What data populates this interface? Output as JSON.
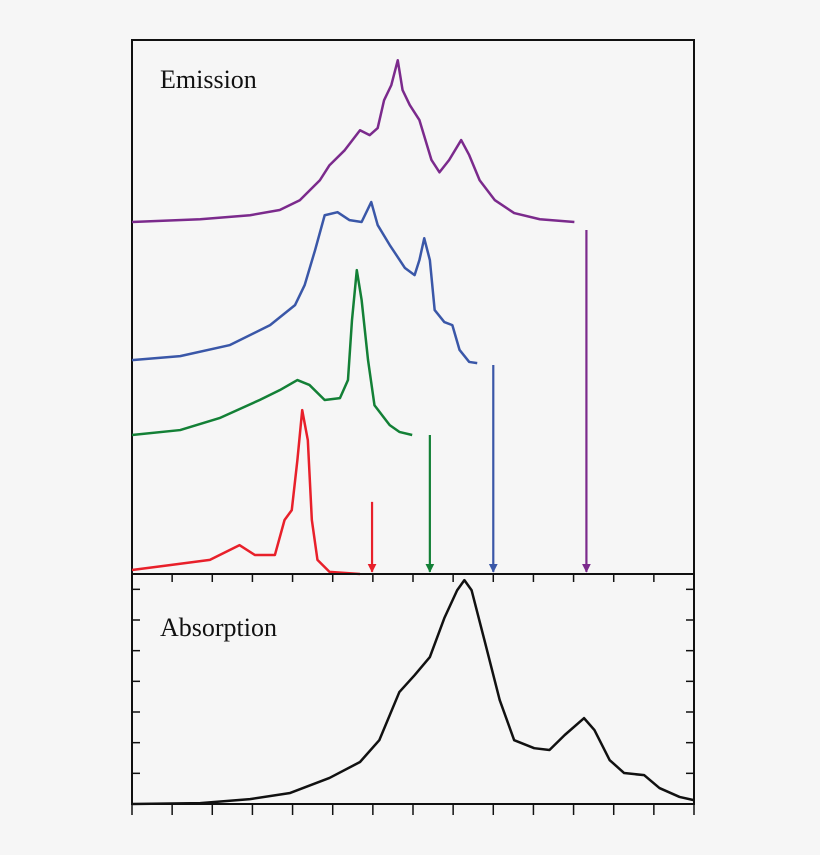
{
  "chart_data": [
    {
      "type": "line",
      "title": "Emission",
      "xlim": [
        0,
        7
      ],
      "ylim": [
        0,
        17.4
      ],
      "series": [
        {
          "color": "#7b2a8c",
          "x": [
            0,
            0.85,
            1.47,
            1.84,
            2.09,
            2.34,
            2.46,
            2.65,
            2.84,
            2.96,
            3.06,
            3.14,
            3.23,
            3.31,
            3.37,
            3.46,
            3.58,
            3.73,
            3.83,
            3.95,
            4.1,
            4.2,
            4.33,
            4.52,
            4.76,
            5.08,
            5.51
          ],
          "values": [
            11.47,
            11.56,
            11.69,
            11.86,
            12.18,
            12.83,
            13.32,
            13.81,
            14.46,
            14.3,
            14.53,
            15.44,
            15.93,
            16.74,
            15.77,
            15.28,
            14.79,
            13.49,
            13.09,
            13.49,
            14.14,
            13.65,
            12.83,
            12.18,
            11.76,
            11.56,
            11.47
          ]
        },
        {
          "color": "#3a57a8",
          "x": [
            0,
            0.6,
            1.22,
            1.72,
            2.03,
            2.15,
            2.28,
            2.4,
            2.56,
            2.71,
            2.86,
            2.98,
            3.06,
            3.21,
            3.4,
            3.52,
            3.58,
            3.64,
            3.71,
            3.77,
            3.89,
            3.99,
            4.08,
            4.2,
            4.3
          ],
          "values": [
            6.97,
            7.1,
            7.46,
            8.11,
            8.76,
            9.41,
            10.55,
            11.69,
            11.79,
            11.53,
            11.47,
            12.12,
            11.37,
            10.72,
            9.97,
            9.74,
            10.23,
            10.94,
            10.23,
            8.6,
            8.21,
            8.11,
            7.3,
            6.91,
            6.87
          ]
        },
        {
          "color": "#138036",
          "x": [
            0,
            0.6,
            1.09,
            1.59,
            1.84,
            2.06,
            2.21,
            2.4,
            2.59,
            2.69,
            2.74,
            2.8,
            2.86,
            2.94,
            3.02,
            3.21,
            3.33,
            3.49
          ],
          "values": [
            4.53,
            4.69,
            5.08,
            5.67,
            5.99,
            6.32,
            6.16,
            5.67,
            5.73,
            6.32,
            8.27,
            9.9,
            8.93,
            6.97,
            5.5,
            4.85,
            4.63,
            4.53
          ]
        },
        {
          "color": "#e8202a",
          "x": [
            0,
            0.47,
            0.97,
            1.34,
            1.53,
            1.78,
            1.9,
            1.99,
            2.06,
            2.12,
            2.19,
            2.24,
            2.31,
            2.46,
            2.84
          ],
          "values": [
            0.13,
            0.29,
            0.46,
            0.94,
            0.62,
            0.62,
            1.76,
            2.08,
            3.71,
            5.34,
            4.36,
            1.76,
            0.46,
            0.07,
            0
          ]
        }
      ],
      "arrows": [
        {
          "x": 2.99,
          "y_start": 2.35,
          "y_end": 0.07,
          "color": "#e8202a"
        },
        {
          "x": 3.71,
          "y_start": 4.53,
          "y_end": 0.07,
          "color": "#138036"
        },
        {
          "x": 4.5,
          "y_start": 6.81,
          "y_end": 0.07,
          "color": "#3a57a8"
        },
        {
          "x": 5.66,
          "y_start": 11.21,
          "y_end": 0.07,
          "color": "#7b2a8c"
        }
      ]
    },
    {
      "type": "line",
      "title": "Absorption",
      "xlim": [
        0,
        7
      ],
      "ylim": [
        0,
        7.5
      ],
      "xticks": [
        0,
        0.5,
        1,
        1.5,
        2,
        2.5,
        3,
        3.5,
        4,
        4.5,
        5,
        5.5,
        6,
        6.5,
        7
      ],
      "yticks": [
        0,
        1,
        2,
        3,
        4,
        5,
        6,
        7
      ],
      "series": [
        {
          "color": "#111111",
          "x": [
            0,
            0.85,
            1.47,
            1.97,
            2.46,
            2.84,
            3.08,
            3.33,
            3.52,
            3.71,
            3.89,
            4.05,
            4.14,
            4.23,
            4.39,
            4.58,
            4.76,
            5.01,
            5.2,
            5.39,
            5.63,
            5.76,
            5.95,
            6.13,
            6.38,
            6.57,
            6.82,
            6.99
          ],
          "values": [
            0,
            0.03,
            0.16,
            0.36,
            0.85,
            1.37,
            2.08,
            3.65,
            4.2,
            4.79,
            6.06,
            6.97,
            7.3,
            6.97,
            5.34,
            3.39,
            2.08,
            1.82,
            1.76,
            2.25,
            2.8,
            2.41,
            1.43,
            1.01,
            0.94,
            0.52,
            0.23,
            0.13
          ]
        }
      ]
    }
  ]
}
